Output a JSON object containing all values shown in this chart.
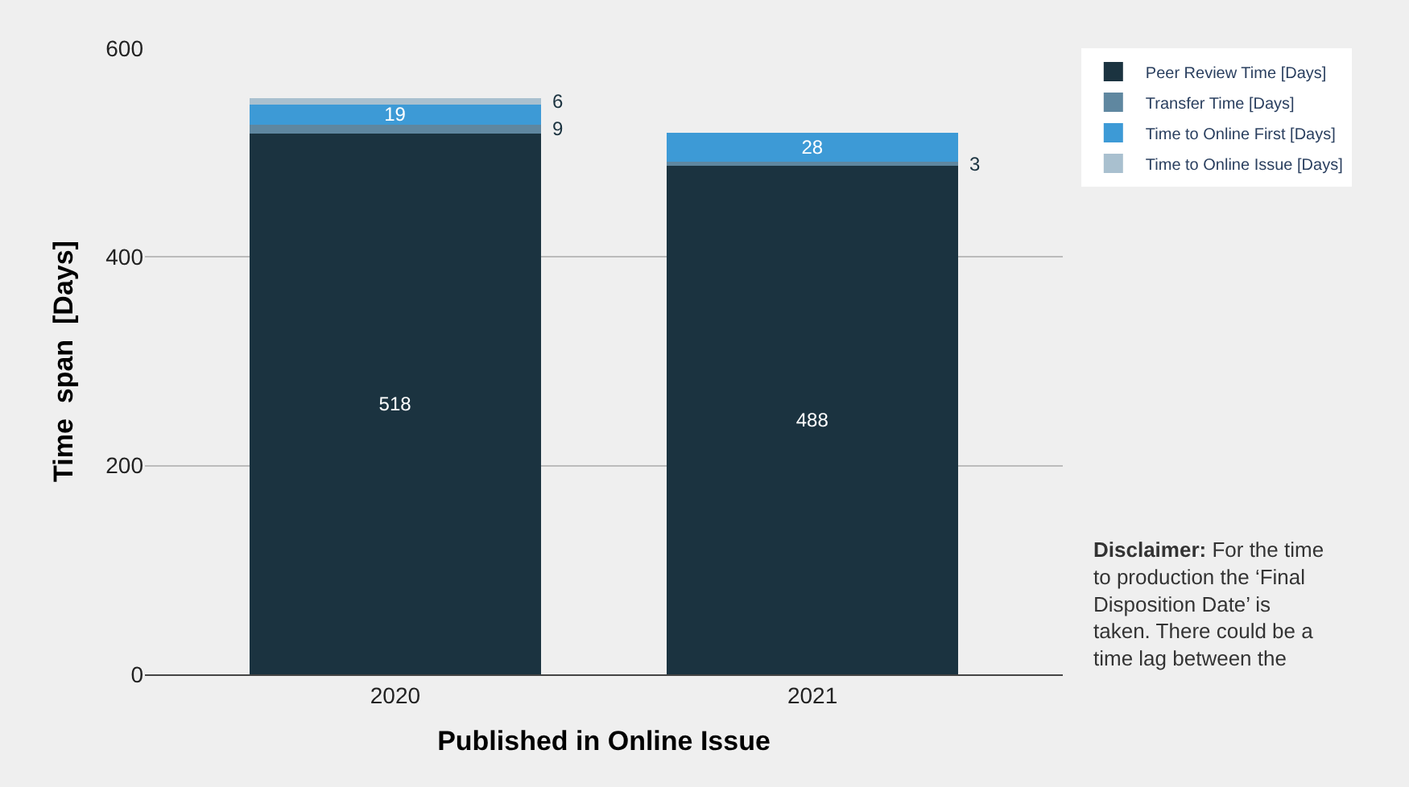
{
  "chart_data": {
    "type": "bar",
    "stacked": true,
    "xlabel": "Published in Online Issue",
    "ylabel": "Time  span  [Days]",
    "categories": [
      "2020",
      "2021"
    ],
    "series": [
      {
        "name": "Peer Review Time [Days]",
        "color": "#1b3340",
        "values": [
          518,
          488
        ]
      },
      {
        "name": "Transfer Time [Days]",
        "color": "#5f87a0",
        "values": [
          9,
          3
        ]
      },
      {
        "name": "Time to Online First [Days]",
        "color": "#3d9ad6",
        "values": [
          19,
          28
        ]
      },
      {
        "name": "Time to Online Issue [Days]",
        "color": "#a9c0cf",
        "values": [
          6,
          null
        ]
      }
    ],
    "ylim": [
      0,
      600
    ],
    "yticks": [
      0,
      200,
      400,
      600
    ],
    "grid": "y",
    "legend": "top right",
    "data_labels": true,
    "annotations": [
      "Disclaimer: For the time to production the ‘Final Disposition Date’ is taken. There could be a time lag between the"
    ]
  }
}
